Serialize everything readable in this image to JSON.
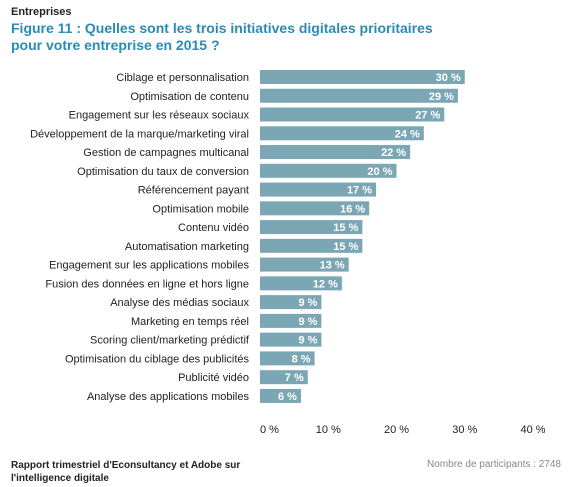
{
  "header": {
    "supertitle": "Entreprises",
    "title": "Figure 11 : Quelles sont les trois initiatives digitales prioritaires pour votre entreprise en 2015 ?"
  },
  "footer": {
    "source": "Rapport trimestriel d'Econsultancy et Adobe sur l'intelligence digitale",
    "participants": "Nombre de participants : 2748"
  },
  "colors": {
    "bar": "#7aa7b3",
    "title": "#2b8bb6",
    "label_text": "#ffffff"
  },
  "chart_data": {
    "type": "bar",
    "orientation": "horizontal",
    "categories": [
      "Ciblage et personnalisation",
      "Optimisation de contenu",
      "Engagement sur les réseaux sociaux",
      "Développement de la marque/marketing viral",
      "Gestion de campagnes multicanal",
      "Optimisation du taux de conversion",
      "Référencement payant",
      "Optimisation mobile",
      "Contenu vidéo",
      "Automatisation marketing",
      "Engagement sur les applications mobiles",
      "Fusion des données en ligne et hors ligne",
      "Analyse des médias sociaux",
      "Marketing en temps réel",
      "Scoring client/marketing prédictif",
      "Optimisation du ciblage des publicités",
      "Publicité vidéo",
      "Analyse des applications mobiles"
    ],
    "values": [
      30,
      29,
      27,
      24,
      22,
      20,
      17,
      16,
      15,
      15,
      13,
      12,
      9,
      9,
      9,
      8,
      7,
      6
    ],
    "value_labels": [
      "30 %",
      "29 %",
      "27 %",
      "24 %",
      "22 %",
      "20 %",
      "17 %",
      "16 %",
      "15 %",
      "15 %",
      "13 %",
      "12 %",
      "9 %",
      "9 %",
      "9 %",
      "8 %",
      "7 %",
      "6 %"
    ],
    "xlim": [
      0,
      40
    ],
    "xticks": [
      "0 %",
      "10 %",
      "20 %",
      "30 %",
      "40 %"
    ],
    "grid": false,
    "legend": "none"
  }
}
